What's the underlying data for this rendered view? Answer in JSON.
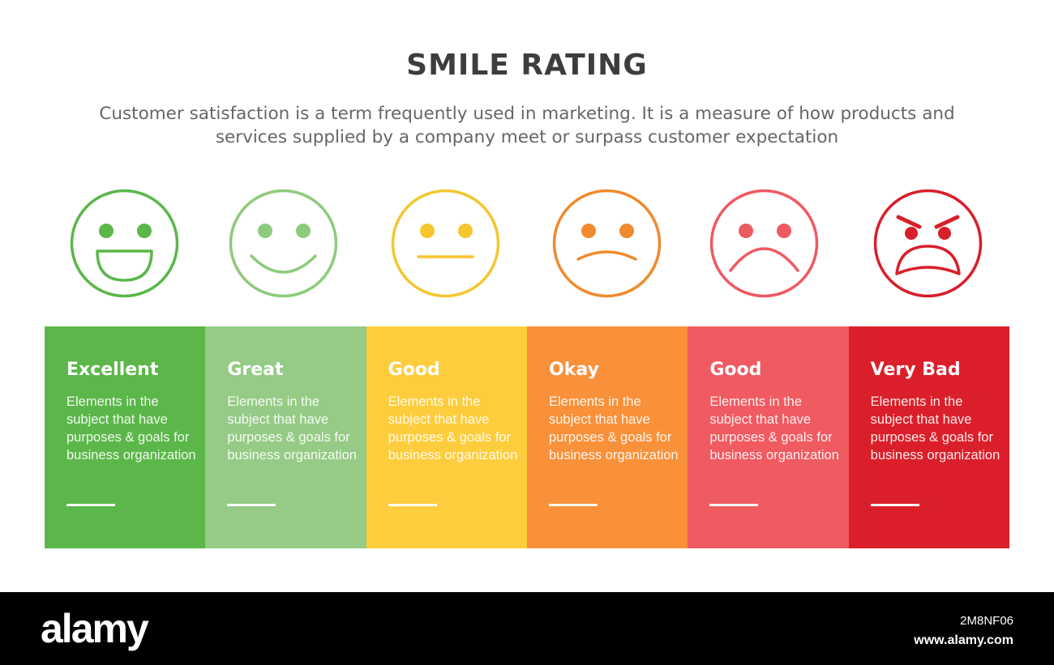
{
  "header": {
    "title": "SMILE RATING",
    "subtitle": "Customer satisfaction is a term frequently used in marketing. It is a measure of how products and services supplied by a company meet or surpass customer expectation"
  },
  "ratings": [
    {
      "label": "Excellent",
      "text": "Elements in the subject that have purposes & goals for business organization",
      "color": "#5bb749",
      "face_color": "#5bb749",
      "icon": "laughing-face-icon"
    },
    {
      "label": "Great",
      "text": "Elements in the subject that have purposes & goals for business organization",
      "color": "#95cb86",
      "face_color": "#8dcb7c",
      "icon": "smiling-face-icon"
    },
    {
      "label": "Good",
      "text": "Elements in the subject that have purposes & goals for business organization",
      "color": "#fecd3d",
      "face_color": "#f5c630",
      "icon": "neutral-face-icon"
    },
    {
      "label": "Okay",
      "text": "Elements in the subject that have purposes & goals for business organization",
      "color": "#f8913a",
      "face_color": "#f08a2e",
      "icon": "slightly-frowning-face-icon"
    },
    {
      "label": "Good",
      "text": "Elements in the subject that have purposes & goals for business organization",
      "color": "#f05a61",
      "face_color": "#ee5a61",
      "icon": "frowning-face-icon"
    },
    {
      "label": "Very Bad",
      "text": "Elements in the subject that have purposes & goals for business organization",
      "color": "#db1f2a",
      "face_color": "#d81f2a",
      "icon": "angry-face-icon"
    }
  ],
  "footer": {
    "logo": "alamy",
    "image_id": "2M8NF06",
    "url": "www.alamy.com"
  }
}
